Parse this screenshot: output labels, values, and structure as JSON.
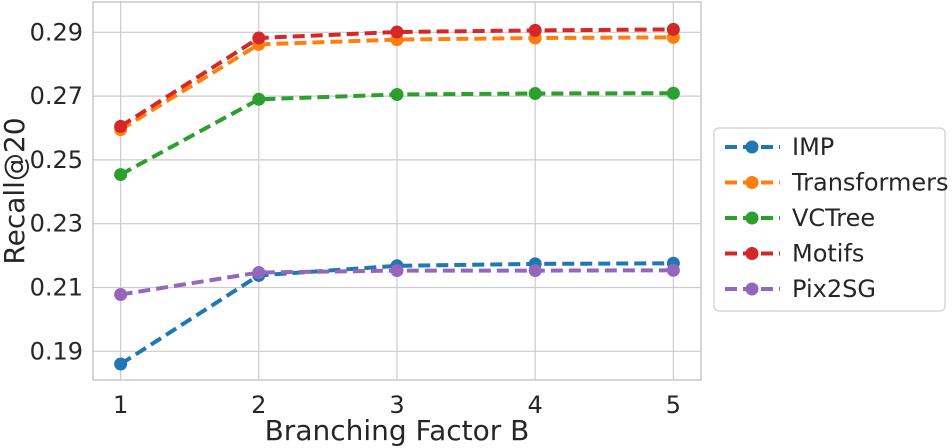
{
  "chart_data": {
    "type": "line",
    "xlabel": "Branching Factor B",
    "ylabel": "Recall@20",
    "x": [
      1,
      2,
      3,
      4,
      5
    ],
    "x_ticks": [
      "1",
      "2",
      "3",
      "4",
      "5"
    ],
    "xlim": [
      0.8,
      5.2
    ],
    "y_ticks": [
      "0.19",
      "0.21",
      "0.23",
      "0.25",
      "0.27",
      "0.29"
    ],
    "y_tick_values": [
      0.19,
      0.21,
      0.23,
      0.25,
      0.27,
      0.29
    ],
    "ylim": [
      0.181,
      0.2995
    ],
    "grid": true,
    "legend_position": "center-right-outside",
    "line_style": "dashed-with-circle-markers",
    "series": [
      {
        "name": "IMP",
        "color": "#1f77b4",
        "values": [
          0.186,
          0.2138,
          0.2168,
          0.2174,
          0.2176
        ]
      },
      {
        "name": "Transformers",
        "color": "#ff7f0e",
        "values": [
          0.2595,
          0.2862,
          0.2877,
          0.2882,
          0.2884
        ]
      },
      {
        "name": "VCTree",
        "color": "#2ca02c",
        "values": [
          0.2454,
          0.269,
          0.2705,
          0.2708,
          0.2709
        ]
      },
      {
        "name": "Motifs",
        "color": "#d62728",
        "values": [
          0.2605,
          0.2882,
          0.2901,
          0.2906,
          0.2909
        ]
      },
      {
        "name": "Pix2SG",
        "color": "#9467bd",
        "values": [
          0.2078,
          0.2147,
          0.2153,
          0.2153,
          0.2154
        ]
      }
    ]
  }
}
